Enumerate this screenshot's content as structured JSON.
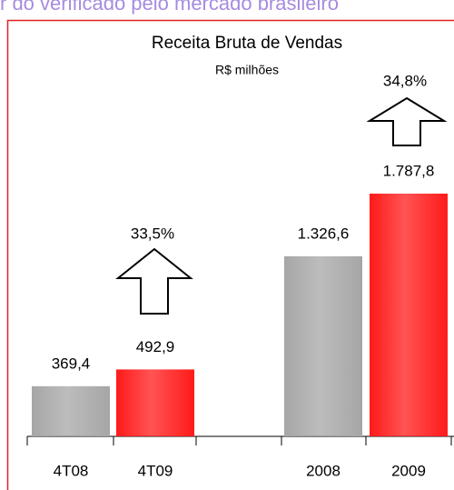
{
  "header": {
    "caption": "r do verificado pelo mercado brasileiro"
  },
  "chart_data": {
    "type": "bar",
    "title": "Receita Bruta de Vendas",
    "subtitle": "R$ milhões",
    "categories": [
      "4T08",
      "4T09",
      "2008",
      "2009"
    ],
    "values": [
      369.4,
      492.9,
      1326.6,
      1787.8
    ],
    "value_labels": [
      "369,4",
      "492,9",
      "1.326,6",
      "1.787,8"
    ],
    "colors": [
      "#a6a6a6",
      "#ff1a1a",
      "#a6a6a6",
      "#ff1a1a"
    ],
    "annotations": [
      "33,5%",
      "34,8%"
    ]
  }
}
